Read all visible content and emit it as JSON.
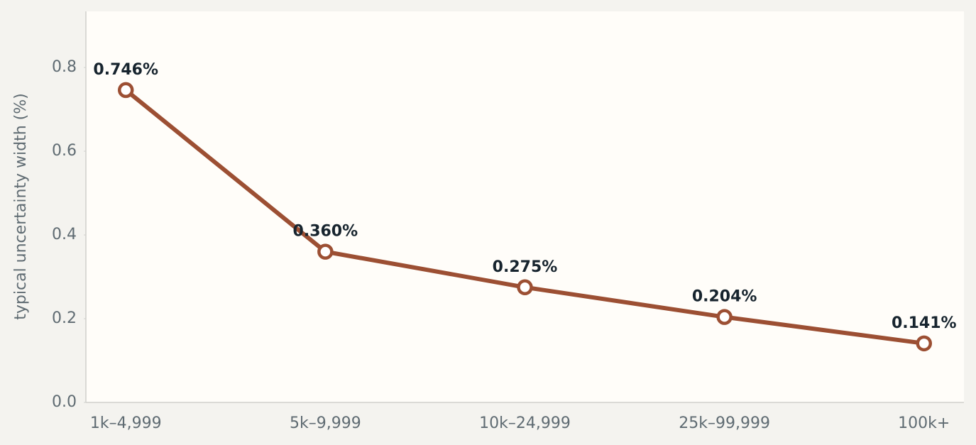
{
  "chart_data": {
    "type": "line",
    "y_label": "typical uncertainty width (%)",
    "categories": [
      "1k–4,999",
      "5k–9,999",
      "10k–24,999",
      "25k–99,999",
      "100k+"
    ],
    "values": [
      0.746,
      0.36,
      0.275,
      0.204,
      0.141
    ],
    "value_labels": [
      "0.746%",
      "0.360%",
      "0.275%",
      "0.204%",
      "0.141%"
    ],
    "color": "#9c4f33",
    "ylim": [
      0,
      0.934
    ],
    "yticks": [
      {
        "value": 0,
        "label": "0.0"
      },
      0.2,
      0.4,
      0.6,
      0.8
    ]
  }
}
